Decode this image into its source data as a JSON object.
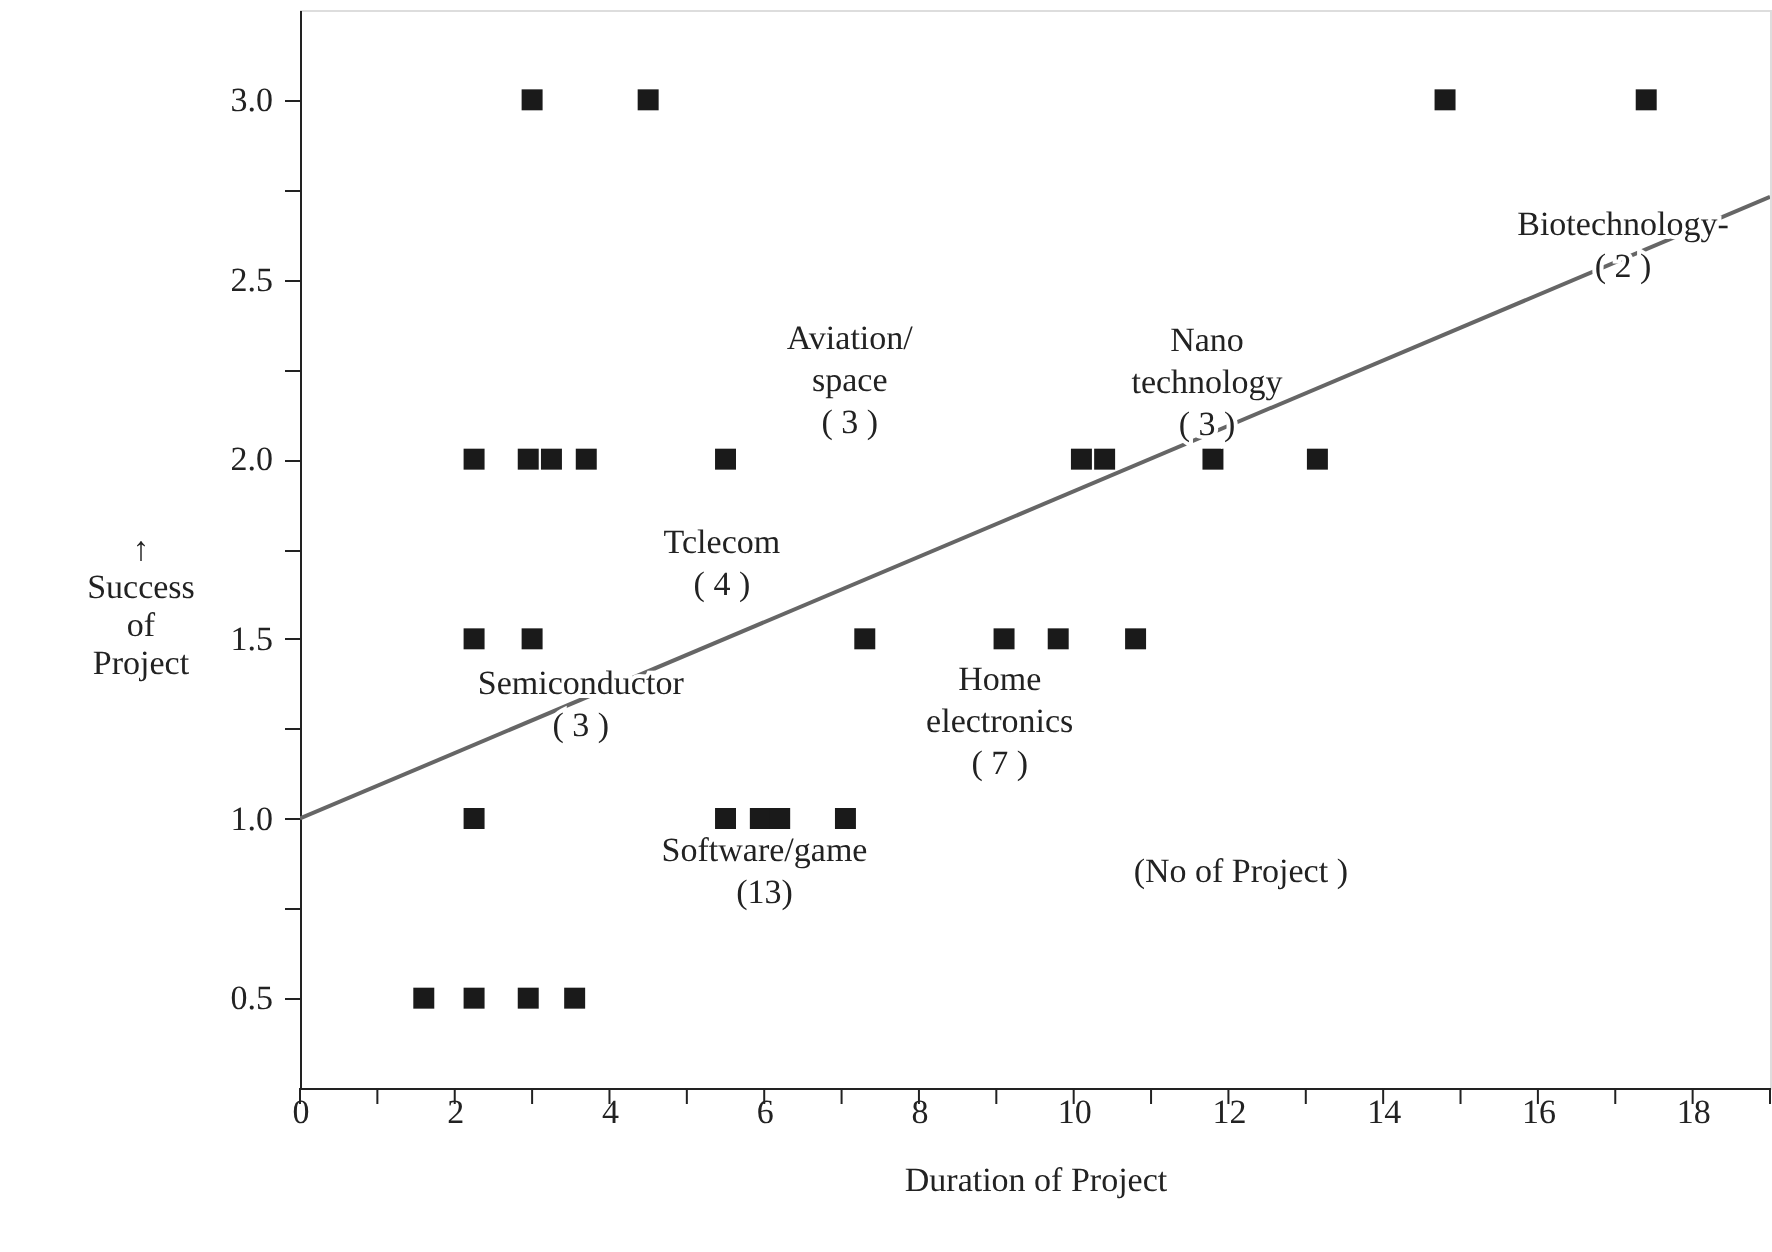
{
  "chart_data": {
    "type": "scatter",
    "xlabel": "Duration of Project",
    "ylabel": "↑\nSuccess\nof\nProject",
    "xlim": [
      0,
      19
    ],
    "ylim": [
      0.25,
      3.25
    ],
    "xticks": [
      0,
      {
        "value": 1,
        "label": null
      },
      2,
      {
        "value": 3,
        "label": null
      },
      4,
      {
        "value": 5,
        "label": null
      },
      6,
      {
        "value": 7,
        "label": null
      },
      8,
      {
        "value": 9,
        "label": null
      },
      10,
      {
        "value": 11,
        "label": null
      },
      12,
      {
        "value": 13,
        "label": null
      },
      14,
      {
        "value": 15,
        "label": null
      },
      16,
      {
        "value": 17,
        "label": null
      },
      18,
      {
        "value": 19,
        "label": null
      }
    ],
    "yticks": [
      0.5,
      {
        "value": 0.75,
        "label": null
      },
      {
        "value": 1.0,
        "label": "1.0"
      },
      {
        "value": 1.25,
        "label": null
      },
      1.5,
      {
        "value": 1.75,
        "label": null
      },
      {
        "value": 2.0,
        "label": "2.0"
      },
      {
        "value": 2.25,
        "label": null
      },
      2.5,
      {
        "value": 2.75,
        "label": null
      },
      {
        "value": 3.0,
        "label": "3.0"
      }
    ],
    "grid": false,
    "marker": "square",
    "series": [
      {
        "color": "#1a1a1a",
        "x": [
          3.0,
          4.5,
          14.8,
          17.4,
          2.25,
          2.95,
          3.25,
          3.7,
          5.5,
          10.1,
          10.4,
          11.8,
          13.15,
          2.25,
          3.0,
          7.3,
          9.1,
          9.8,
          10.8,
          2.25,
          5.5,
          5.95,
          6.2,
          7.05,
          1.6,
          2.25,
          2.95,
          3.55
        ],
        "values": [
          3.0,
          3.0,
          3.0,
          3.0,
          2.0,
          2.0,
          2.0,
          2.0,
          2.0,
          2.0,
          2.0,
          2.0,
          2.0,
          1.5,
          1.5,
          1.5,
          1.5,
          1.5,
          1.5,
          1.0,
          1.0,
          1.0,
          1.0,
          1.0,
          0.5,
          0.5,
          0.5,
          0.5
        ]
      },
      {
        "type": "line",
        "marker": "none",
        "color": "#666666",
        "x": [
          0,
          19
        ],
        "values": [
          1.0,
          2.73
        ]
      }
    ],
    "annotations": [
      "Aviation/\nspace\n( 3 )",
      "Nano\ntechnology\n( 3 )",
      "Biotechnology-\n( 2 )",
      "Tclecom\n( 4 )",
      "Semiconductor\n( 3 )",
      "Home\nelectronics\n( 7 )",
      "Software/game\n(13)",
      "(No of Project )"
    ]
  }
}
